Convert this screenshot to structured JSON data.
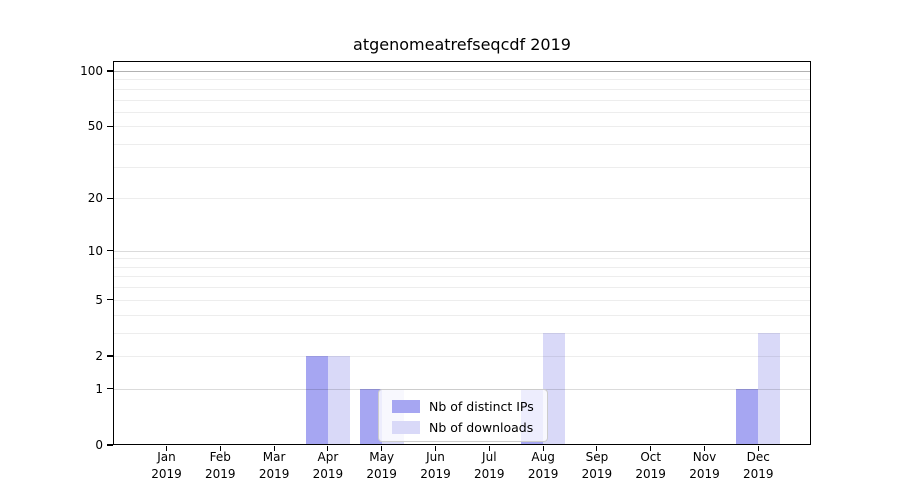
{
  "title": "atgenomeatrefseqcdf 2019",
  "legend": {
    "items": [
      {
        "label": "Nb of distinct IPs",
        "color": "#a6a6f2"
      },
      {
        "label": "Nb of downloads",
        "color": "#d9d9f8"
      }
    ]
  },
  "chart_data": {
    "type": "bar",
    "title": "atgenomeatrefseqcdf 2019",
    "categories": [
      "Jan 2019",
      "Feb 2019",
      "Mar 2019",
      "Apr 2019",
      "May 2019",
      "Jun 2019",
      "Jul 2019",
      "Aug 2019",
      "Sep 2019",
      "Oct 2019",
      "Nov 2019",
      "Dec 2019"
    ],
    "series": [
      {
        "name": "Nb of distinct IPs",
        "color": "#a6a6f2",
        "values": [
          0,
          0,
          0,
          2,
          1,
          0,
          0,
          1,
          0,
          0,
          0,
          1
        ]
      },
      {
        "name": "Nb of downloads",
        "color": "#d9d9f8",
        "values": [
          0,
          0,
          0,
          2,
          1,
          0,
          0,
          3,
          0,
          0,
          0,
          3
        ]
      }
    ],
    "xlabel": "",
    "ylabel": "",
    "yscale": "log1p",
    "ylim": [
      0,
      113
    ],
    "yticks": [
      0,
      1,
      2,
      5,
      10,
      20,
      50,
      100
    ],
    "minor_gridlines": [
      2,
      3,
      4,
      5,
      6,
      7,
      8,
      9,
      20,
      30,
      40,
      50,
      60,
      70,
      80,
      90
    ],
    "major_gridlines": [
      1,
      10
    ],
    "top_gridline": 100,
    "grid": true,
    "legend_position": "lower center"
  }
}
